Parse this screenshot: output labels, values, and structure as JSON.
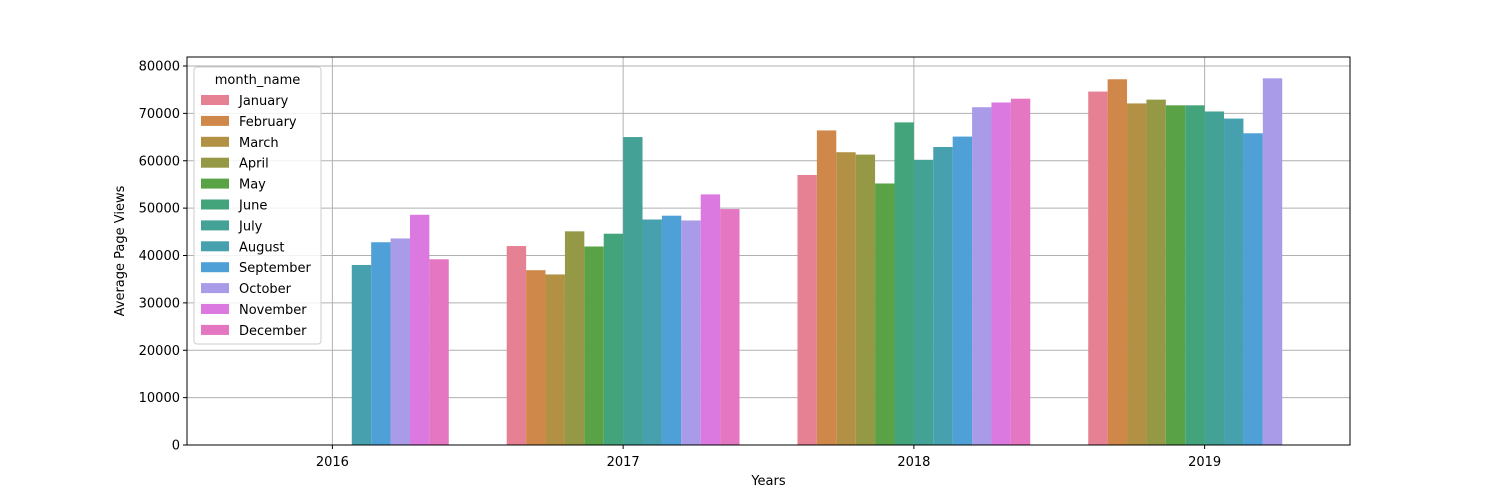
{
  "chart_data": {
    "type": "bar",
    "title": "",
    "xlabel": "Years",
    "ylabel": "Average Page Views",
    "categories": [
      "2016",
      "2017",
      "2018",
      "2019"
    ],
    "ylim": [
      0,
      80000
    ],
    "yticks": [
      0,
      10000,
      20000,
      30000,
      40000,
      50000,
      60000,
      70000,
      80000
    ],
    "grid": true,
    "legend": {
      "title": "month_name",
      "placement": "upper-left"
    },
    "series": [
      {
        "name": "January",
        "color": "#e68193",
        "values": [
          null,
          42000,
          57000,
          74600
        ]
      },
      {
        "name": "February",
        "color": "#d0884a",
        "values": [
          null,
          36900,
          66400,
          77200
        ]
      },
      {
        "name": "March",
        "color": "#b29145",
        "values": [
          null,
          36000,
          61800,
          72100
        ]
      },
      {
        "name": "April",
        "color": "#959945",
        "values": [
          null,
          45100,
          61300,
          72900
        ]
      },
      {
        "name": "May",
        "color": "#5aa246",
        "values": [
          null,
          41900,
          55200,
          71700
        ]
      },
      {
        "name": "June",
        "color": "#43a37a",
        "values": [
          null,
          44600,
          68100,
          71700
        ]
      },
      {
        "name": "July",
        "color": "#44a196",
        "values": [
          null,
          65000,
          60200,
          70400
        ]
      },
      {
        "name": "August",
        "color": "#47a0ae",
        "values": [
          38000,
          47600,
          62900,
          68900
        ]
      },
      {
        "name": "September",
        "color": "#4fa0d6",
        "values": [
          42800,
          48400,
          65100,
          65800
        ]
      },
      {
        "name": "October",
        "color": "#a99be8",
        "values": [
          43600,
          47400,
          71300,
          77400
        ]
      },
      {
        "name": "November",
        "color": "#dc79e1",
        "values": [
          48600,
          52900,
          72300,
          null
        ]
      },
      {
        "name": "December",
        "color": "#e476c2",
        "values": [
          39200,
          49800,
          73100,
          null
        ]
      }
    ]
  }
}
